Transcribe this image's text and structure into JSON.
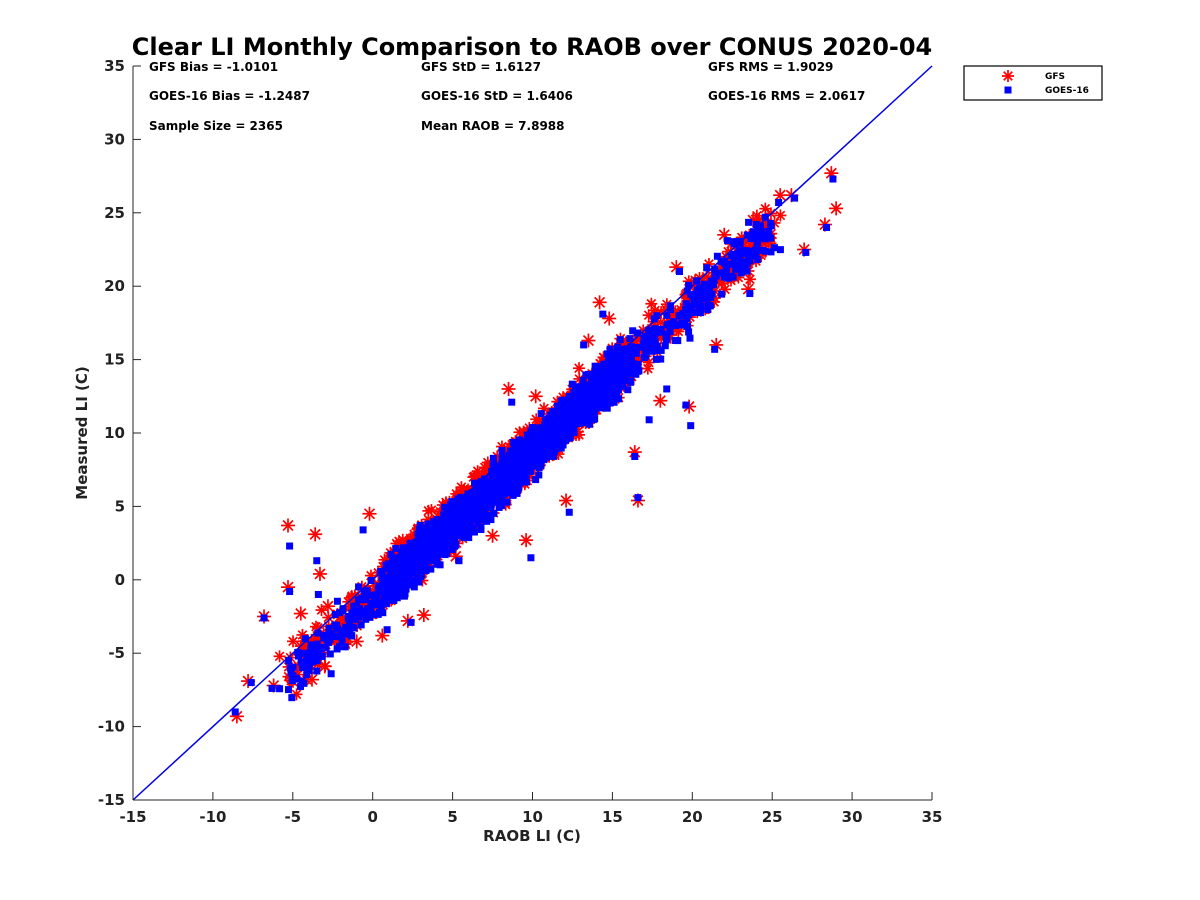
{
  "chart_data": {
    "type": "scatter",
    "title": "Clear LI Monthly Comparison to RAOB over CONUS 2020-04",
    "xlabel": "RAOB LI (C)",
    "ylabel": "Measured LI (C)",
    "xlim": [
      -15,
      35
    ],
    "ylim": [
      -15,
      35
    ],
    "xticks": [
      "-15",
      "-10",
      "-5",
      "0",
      "5",
      "10",
      "15",
      "20",
      "25",
      "30",
      "35"
    ],
    "yticks": [
      "-15",
      "-10",
      "-5",
      "0",
      "5",
      "10",
      "15",
      "20",
      "25",
      "30",
      "35"
    ],
    "grid": false,
    "legend_position": "outside top-right",
    "reference_line": {
      "type": "one-to-one",
      "color": "#0000ee"
    },
    "stats": [
      [
        "GFS Bias = -1.0101",
        "GFS StD = 1.6127",
        "GFS RMS = 1.9029"
      ],
      [
        "GOES-16 Bias = -1.2487",
        "GOES-16 StD = 1.6406",
        "GOES-16 RMS = 2.0617"
      ],
      [
        "Sample Size = 2365",
        "Mean RAOB = 7.8988",
        ""
      ]
    ],
    "series": [
      {
        "name": "GFS",
        "marker": "asterisk",
        "color": "#ff0000",
        "outliers": [
          [
            -8.5,
            -9.3
          ],
          [
            -7.8,
            -6.9
          ],
          [
            -6.8,
            -2.5
          ],
          [
            -6.2,
            -7.2
          ],
          [
            -5.3,
            3.7
          ],
          [
            -5.3,
            -0.5
          ],
          [
            -5.0,
            -6.5
          ],
          [
            -4.5,
            -2.3
          ],
          [
            -3.8,
            -6.8
          ],
          [
            -3.6,
            3.1
          ],
          [
            -3.3,
            0.4
          ],
          [
            -3.0,
            -5.9
          ],
          [
            -2.8,
            -1.8
          ],
          [
            -2.2,
            -3.5
          ],
          [
            -1.0,
            -4.2
          ],
          [
            -0.2,
            4.5
          ],
          [
            0.6,
            -3.8
          ],
          [
            2.2,
            -2.8
          ],
          [
            3.2,
            -2.4
          ],
          [
            5.2,
            1.6
          ],
          [
            7.5,
            3.0
          ],
          [
            8.5,
            13.0
          ],
          [
            9.6,
            2.7
          ],
          [
            10.2,
            12.5
          ],
          [
            12.1,
            5.4
          ],
          [
            13.5,
            16.3
          ],
          [
            14.2,
            18.9
          ],
          [
            14.8,
            17.8
          ],
          [
            16.4,
            8.7
          ],
          [
            16.6,
            5.4
          ],
          [
            18.0,
            12.2
          ],
          [
            19.0,
            21.3
          ],
          [
            19.8,
            11.8
          ],
          [
            21.5,
            16.0
          ],
          [
            22.0,
            23.5
          ],
          [
            23.5,
            19.8
          ],
          [
            23.8,
            24.5
          ],
          [
            25.5,
            26.2
          ],
          [
            26.2,
            26.2
          ],
          [
            27.0,
            22.5
          ],
          [
            28.3,
            24.2
          ],
          [
            28.7,
            27.7
          ],
          [
            29.0,
            25.3
          ]
        ]
      },
      {
        "name": "GOES-16",
        "marker": "square",
        "color": "#0000ff",
        "outliers": [
          [
            -8.6,
            -9.0
          ],
          [
            -7.6,
            -7.0
          ],
          [
            -6.8,
            -2.6
          ],
          [
            -6.3,
            -7.4
          ],
          [
            -5.2,
            2.3
          ],
          [
            -5.2,
            -0.8
          ],
          [
            -4.8,
            -6.7
          ],
          [
            -3.5,
            1.3
          ],
          [
            -3.4,
            -1.0
          ],
          [
            -2.6,
            -6.4
          ],
          [
            -0.6,
            3.4
          ],
          [
            0.9,
            -3.4
          ],
          [
            2.4,
            -2.9
          ],
          [
            5.4,
            1.3
          ],
          [
            7.4,
            4.1
          ],
          [
            8.7,
            12.1
          ],
          [
            9.9,
            1.5
          ],
          [
            12.3,
            4.6
          ],
          [
            13.2,
            16.0
          ],
          [
            14.4,
            18.1
          ],
          [
            16.4,
            8.4
          ],
          [
            16.6,
            5.6
          ],
          [
            17.3,
            10.9
          ],
          [
            18.4,
            13.0
          ],
          [
            19.2,
            21.0
          ],
          [
            19.6,
            11.9
          ],
          [
            19.9,
            10.5
          ],
          [
            21.4,
            15.7
          ],
          [
            22.2,
            23.1
          ],
          [
            23.6,
            19.5
          ],
          [
            24.0,
            24.2
          ],
          [
            25.4,
            25.7
          ],
          [
            26.4,
            26.0
          ],
          [
            27.1,
            22.3
          ],
          [
            28.4,
            24.0
          ],
          [
            28.8,
            27.3
          ]
        ]
      }
    ]
  }
}
